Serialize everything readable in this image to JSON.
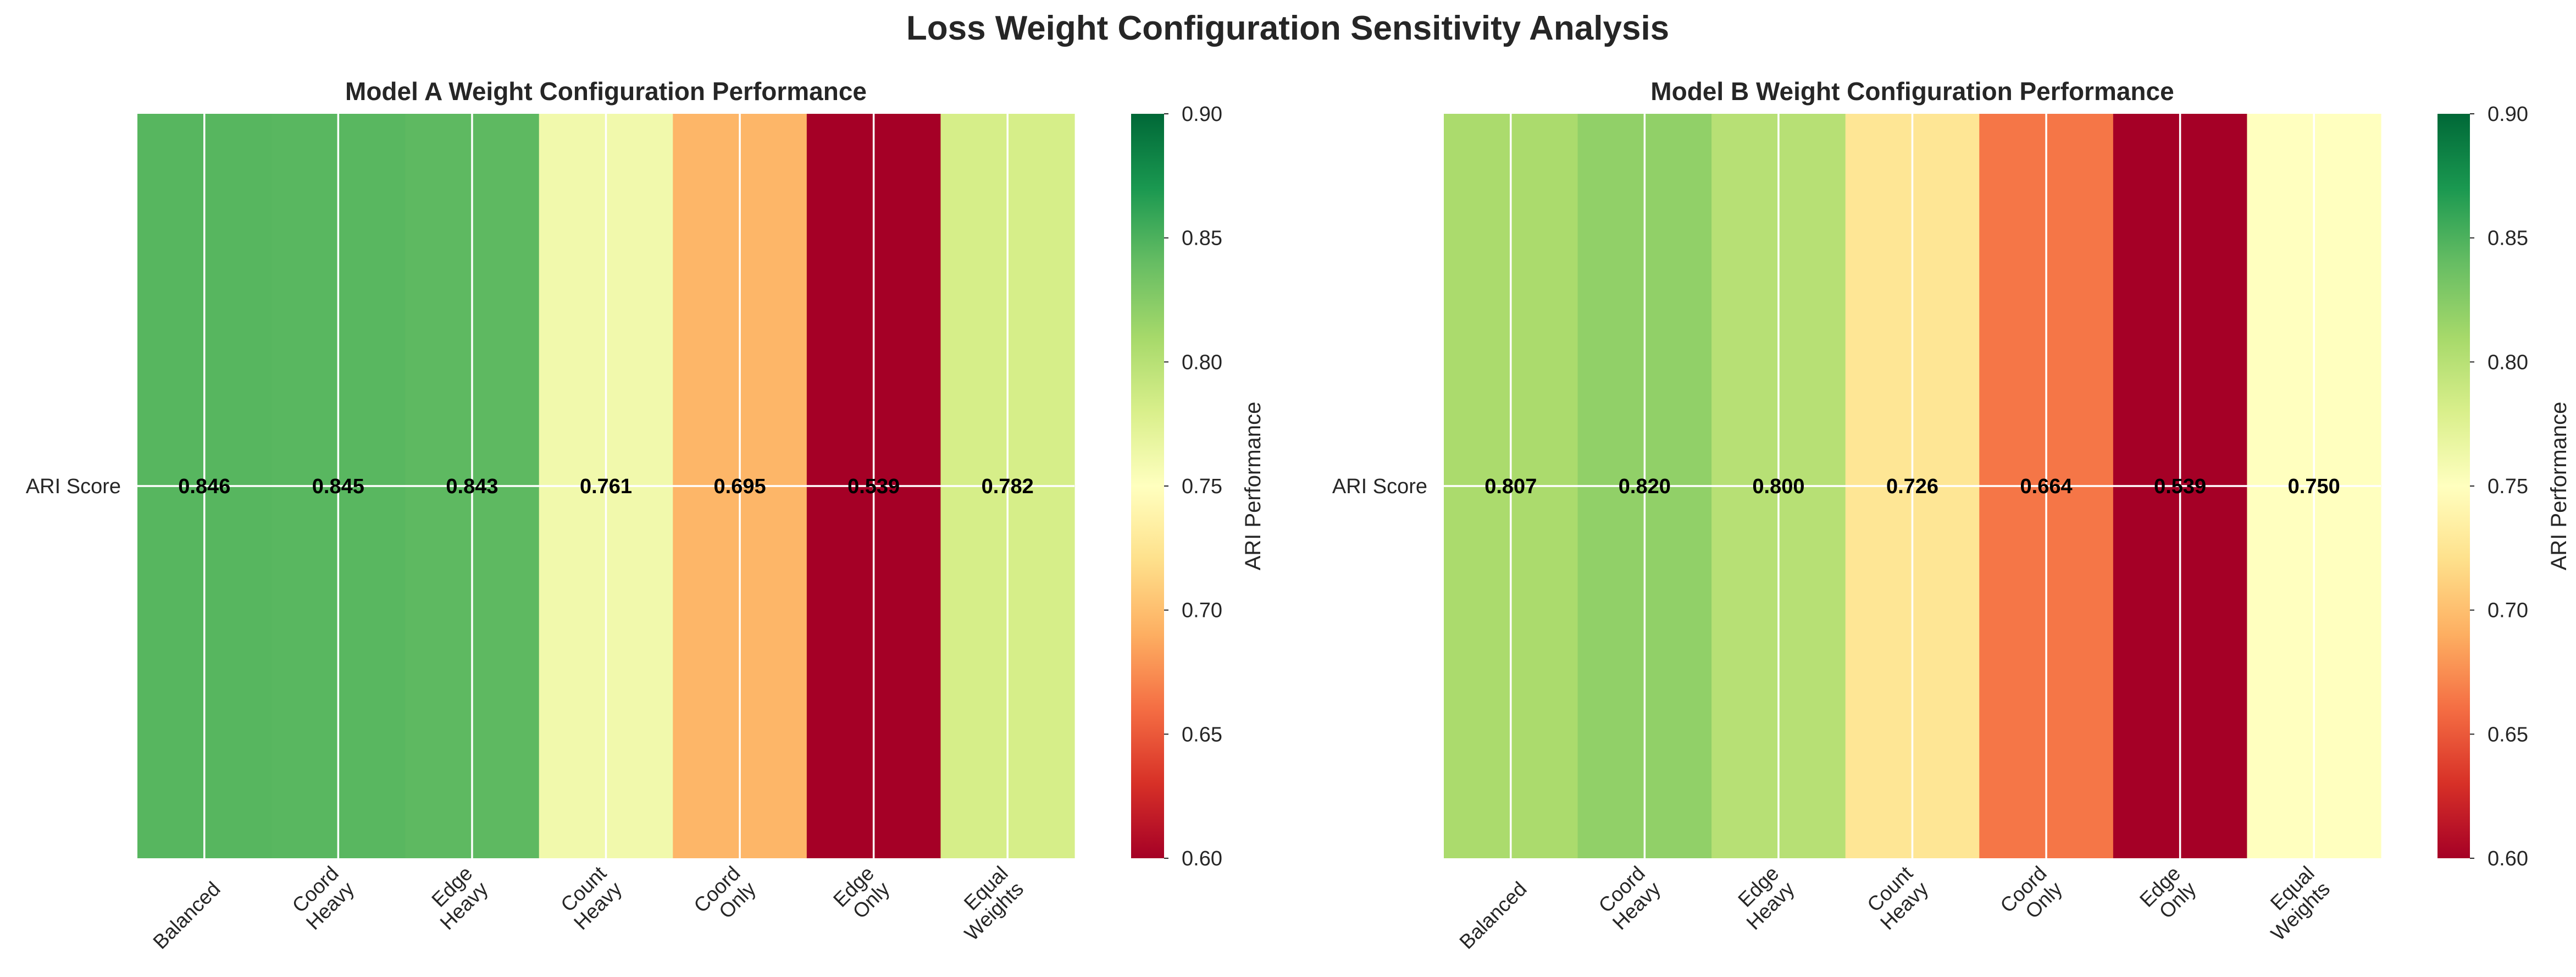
{
  "figure": {
    "suptitle": "Loss Weight Configuration Sensitivity Analysis"
  },
  "chart_data": [
    {
      "type": "heatmap",
      "title": "Model A Weight Configuration Performance",
      "xlabel": "",
      "ylabel": "",
      "categories": [
        "Balanced",
        "Coord Heavy",
        "Edge Heavy",
        "Count Heavy",
        "Coord Only",
        "Edge Only",
        "Equal Weights"
      ],
      "rows": [
        "ARI Score"
      ],
      "values": [
        [
          0.846,
          0.845,
          0.843,
          0.761,
          0.695,
          0.539,
          0.782
        ]
      ],
      "value_labels": [
        "0.846",
        "0.845",
        "0.843",
        "0.761",
        "0.695",
        "0.539",
        "0.782"
      ],
      "colormap": "RdYlGn",
      "vmin": 0.6,
      "vmax": 0.9,
      "colorbar": {
        "label": "ARI Performance",
        "ticks": [
          "0.60",
          "0.65",
          "0.70",
          "0.75",
          "0.80",
          "0.85",
          "0.90"
        ]
      },
      "grid": true
    },
    {
      "type": "heatmap",
      "title": "Model B Weight Configuration Performance",
      "xlabel": "",
      "ylabel": "",
      "categories": [
        "Balanced",
        "Coord Heavy",
        "Edge Heavy",
        "Count Heavy",
        "Coord Only",
        "Edge Only",
        "Equal Weights"
      ],
      "rows": [
        "ARI Score"
      ],
      "values": [
        [
          0.807,
          0.82,
          0.8,
          0.726,
          0.664,
          0.539,
          0.75
        ]
      ],
      "value_labels": [
        "0.807",
        "0.820",
        "0.800",
        "0.726",
        "0.664",
        "0.539",
        "0.750"
      ],
      "colormap": "RdYlGn",
      "vmin": 0.6,
      "vmax": 0.9,
      "colorbar": {
        "label": "ARI Performance",
        "ticks": [
          "0.60",
          "0.65",
          "0.70",
          "0.75",
          "0.80",
          "0.85",
          "0.90"
        ]
      },
      "grid": true
    }
  ]
}
